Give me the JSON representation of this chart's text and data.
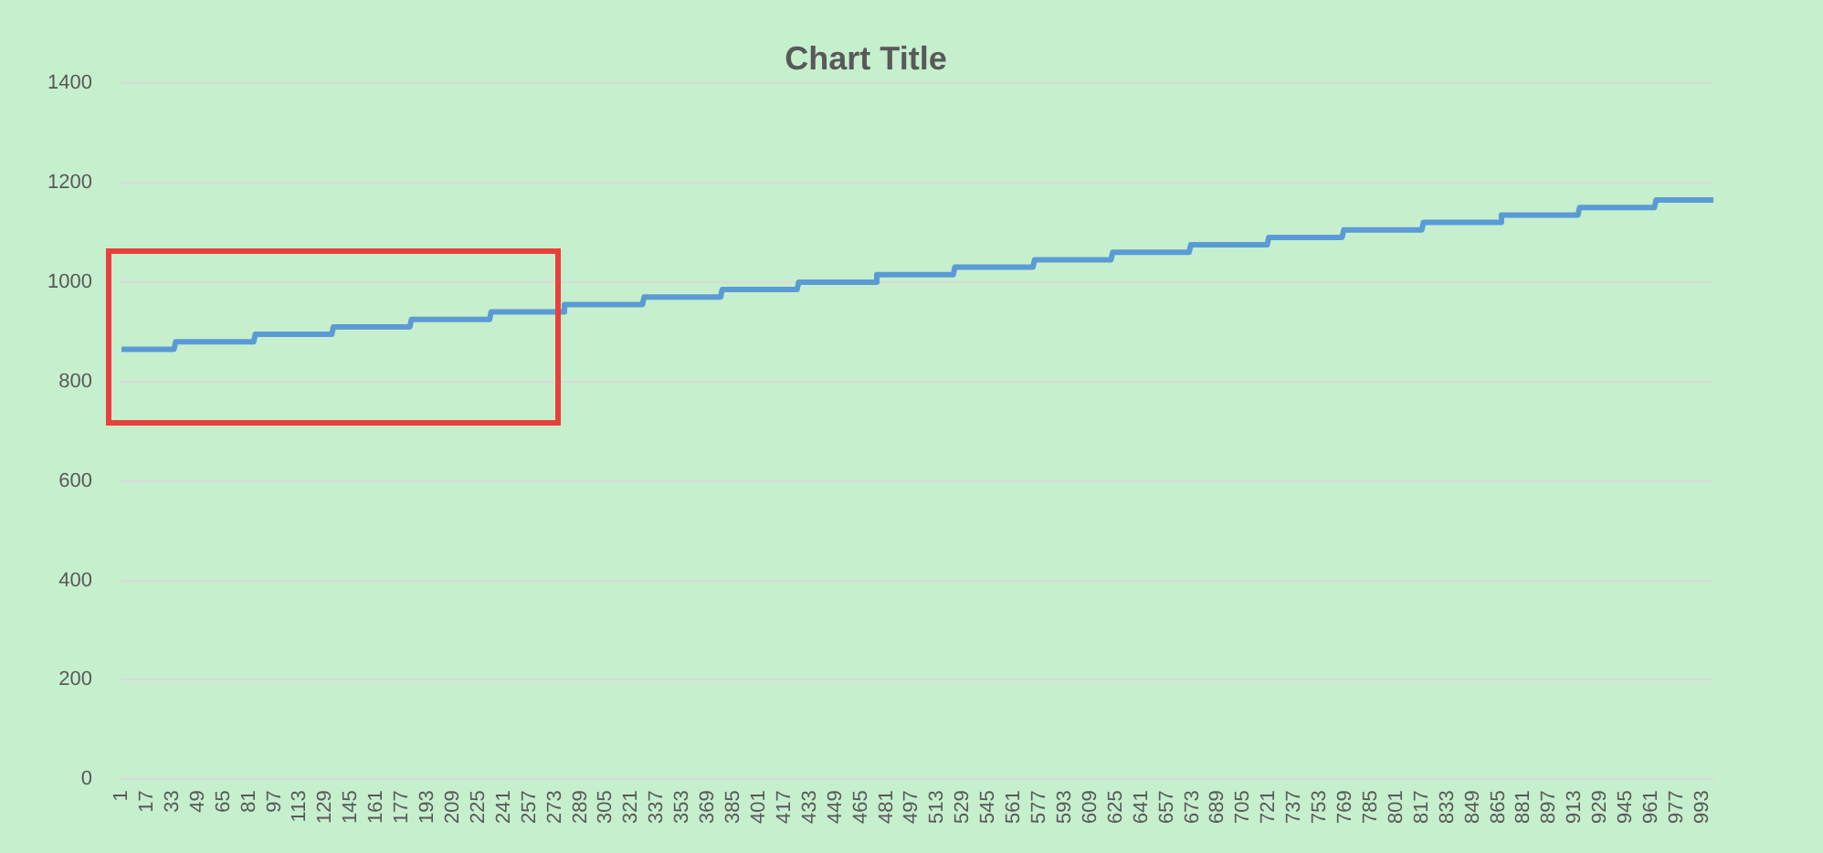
{
  "chart_data": {
    "type": "line",
    "title": "Chart Title",
    "x": [
      1,
      34,
      35,
      84,
      85,
      133,
      134,
      182,
      183,
      232,
      233,
      278,
      279,
      328,
      329,
      377,
      378,
      425,
      426,
      474,
      475,
      523,
      524,
      573,
      574,
      622,
      623,
      671,
      672,
      720,
      721,
      767,
      768,
      817,
      818,
      866,
      867,
      915,
      916,
      963,
      964,
      1000
    ],
    "series": [
      {
        "color": "#5b9bd5",
        "values": [
          865,
          865,
          880,
          880,
          895,
          895,
          910,
          910,
          925,
          925,
          940,
          940,
          955,
          955,
          970,
          970,
          985,
          985,
          1000,
          1000,
          1015,
          1015,
          1030,
          1030,
          1045,
          1045,
          1060,
          1060,
          1075,
          1075,
          1090,
          1090,
          1105,
          1105,
          1120,
          1120,
          1135,
          1135,
          1150,
          1150,
          1165,
          1165
        ]
      }
    ],
    "xlim": [
      1,
      1000
    ],
    "xticks": [
      1,
      17,
      33,
      49,
      65,
      81,
      97,
      113,
      129,
      145,
      161,
      177,
      193,
      209,
      225,
      241,
      257,
      273,
      289,
      305,
      321,
      337,
      353,
      369,
      385,
      401,
      417,
      433,
      449,
      465,
      481,
      497,
      513,
      529,
      545,
      561,
      577,
      593,
      609,
      625,
      641,
      657,
      673,
      689,
      705,
      721,
      737,
      753,
      769,
      785,
      801,
      817,
      833,
      849,
      865,
      881,
      897,
      913,
      929,
      945,
      961,
      977,
      993
    ],
    "ylim": [
      0,
      1400
    ],
    "yticks": [
      0,
      200,
      400,
      600,
      800,
      1000,
      1200,
      1400
    ],
    "grid": "y",
    "legend": false,
    "marker": "none",
    "line_style": "solid"
  }
}
